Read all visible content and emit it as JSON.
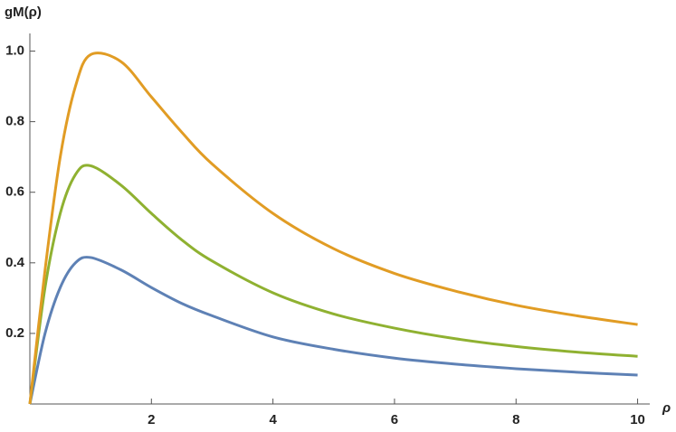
{
  "chart_data": {
    "type": "line",
    "xlabel": "ρ",
    "ylabel": "gM(ρ)",
    "x": [
      0,
      0.25,
      0.5,
      0.75,
      1,
      1.5,
      2,
      2.5,
      3,
      4,
      5,
      6,
      7,
      8,
      9,
      10
    ],
    "series": [
      {
        "color": "#5e81b5",
        "values": [
          0,
          0.2,
          0.33,
          0.4,
          0.415,
          0.38,
          0.33,
          0.285,
          0.25,
          0.19,
          0.155,
          0.13,
          0.113,
          0.1,
          0.09,
          0.082
        ]
      },
      {
        "color": "#8fb131",
        "values": [
          0,
          0.33,
          0.54,
          0.65,
          0.675,
          0.62,
          0.54,
          0.465,
          0.405,
          0.315,
          0.255,
          0.215,
          0.185,
          0.163,
          0.147,
          0.135
        ]
      },
      {
        "color": "#e19c24",
        "values": [
          0,
          0.38,
          0.7,
          0.9,
          0.99,
          0.97,
          0.87,
          0.77,
          0.68,
          0.54,
          0.44,
          0.37,
          0.32,
          0.28,
          0.25,
          0.225
        ]
      }
    ],
    "xlim": [
      0,
      10.2
    ],
    "ylim": [
      0,
      1.05
    ],
    "xticks": [
      2,
      4,
      6,
      8,
      10
    ],
    "yticks": [
      0.2,
      0.4,
      0.6,
      0.8,
      {
        "value": 1,
        "label": "1.0"
      }
    ]
  }
}
